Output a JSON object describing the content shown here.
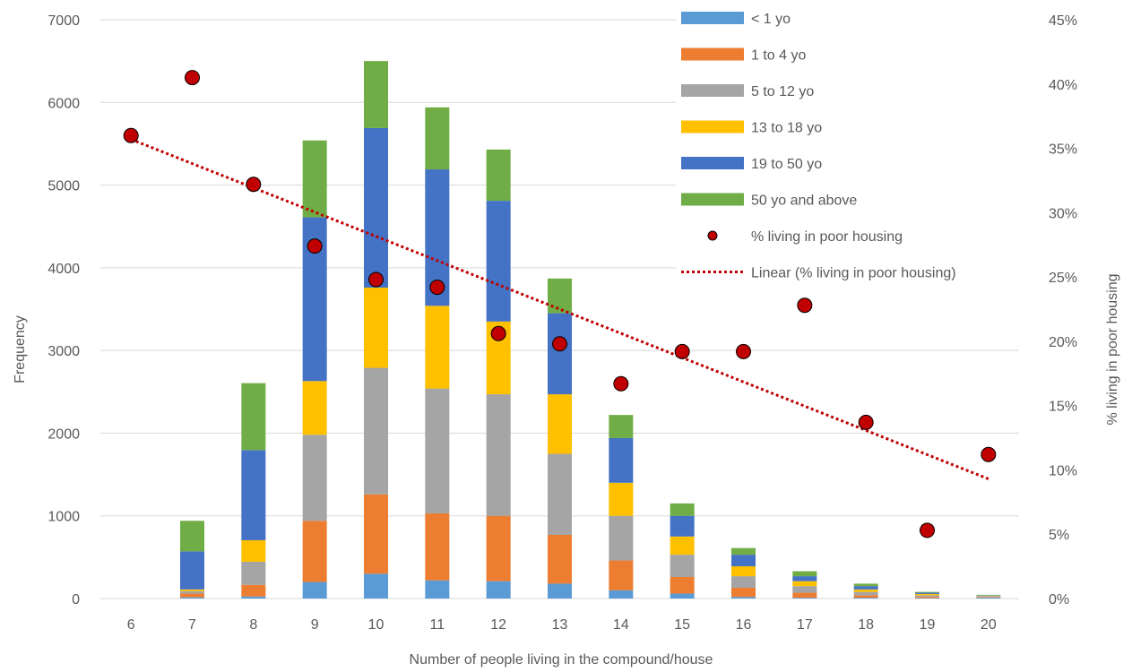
{
  "chart_data": {
    "type": "bar",
    "stacked": true,
    "categories": [
      "6",
      "7",
      "8",
      "9",
      "10",
      "11",
      "12",
      "13",
      "14",
      "15",
      "16",
      "17",
      "18",
      "19",
      "20"
    ],
    "xlabel": "Number of people living in the compound/house",
    "ylabel": "Frequency",
    "y2label": "% living in poor housing",
    "ylim": [
      0,
      7000
    ],
    "yticks": [
      "0",
      "1000",
      "2000",
      "3000",
      "4000",
      "5000",
      "6000",
      "7000"
    ],
    "y2lim": [
      0,
      45
    ],
    "y2ticks": [
      "0%",
      "5%",
      "10%",
      "15%",
      "20%",
      "25%",
      "30%",
      "35%",
      "40%",
      "45%"
    ],
    "grid": true,
    "legend_position": "top-right",
    "series": [
      {
        "name": "< 1 yo",
        "color": "#5B9BD5",
        "values": [
          0,
          15,
          25,
          200,
          300,
          220,
          210,
          180,
          100,
          60,
          20,
          10,
          10,
          5,
          10
        ]
      },
      {
        "name": "1 to 4 yo",
        "color": "#ED7D31",
        "values": [
          0,
          45,
          140,
          740,
          960,
          810,
          790,
          590,
          360,
          200,
          110,
          60,
          30,
          15,
          5
        ]
      },
      {
        "name": "5 to 12 yo",
        "color": "#A5A5A5",
        "values": [
          0,
          30,
          280,
          1040,
          1530,
          1510,
          1470,
          980,
          540,
          270,
          140,
          80,
          40,
          20,
          15
        ]
      },
      {
        "name": "13 to 18 yo",
        "color": "#FFC000",
        "values": [
          0,
          20,
          260,
          650,
          970,
          1000,
          880,
          720,
          400,
          220,
          120,
          60,
          30,
          15,
          5
        ]
      },
      {
        "name": "19 to 50 yo",
        "color": "#4472C4",
        "values": [
          0,
          460,
          1090,
          1980,
          1930,
          1650,
          1460,
          980,
          540,
          250,
          140,
          60,
          40,
          15,
          5
        ]
      },
      {
        "name": "50 yo and above",
        "color": "#70AD47",
        "values": [
          0,
          370,
          810,
          930,
          810,
          750,
          620,
          420,
          280,
          150,
          80,
          60,
          30,
          10,
          5
        ]
      }
    ],
    "scatter": {
      "name": "% living in poor housing",
      "color": "#C00000",
      "axis": "secondary",
      "values": [
        36,
        40.5,
        32.2,
        27.4,
        24.8,
        24.2,
        20.6,
        19.8,
        16.7,
        19.2,
        19.2,
        22.8,
        13.7,
        5.3,
        11.2
      ]
    },
    "trendline": {
      "name": "Linear (% living in poor housing)",
      "color": "#C00000",
      "axis": "secondary",
      "from": {
        "x": "6",
        "y": 35.7
      },
      "to": {
        "x": "20",
        "y": 9.3
      }
    }
  }
}
